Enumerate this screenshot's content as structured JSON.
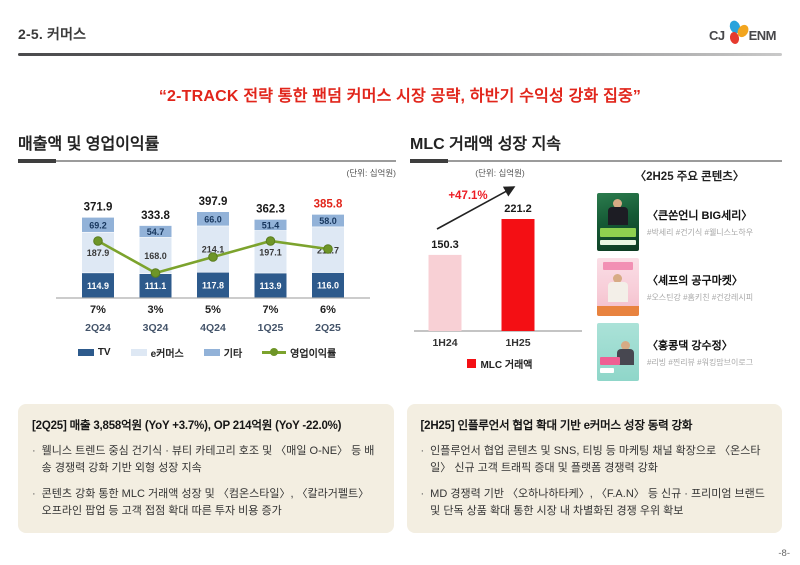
{
  "colors": {
    "accent_red": "#e1251b",
    "box_bg": "#f3eee1"
  },
  "header": {
    "slide_label": "2-5. 커머스",
    "logo_cj": "CJ",
    "logo_enm": "ENM"
  },
  "headline": "“2-TRACK 전략 통한 팬덤 커머스 시장 공략, 하반기 수익성 강화 집중”",
  "left_section": {
    "title": "매출액 및 영업이익률",
    "unit": "(단위: 십억원)"
  },
  "right_section": {
    "title": "MLC 거래액 성장 지속",
    "unit": "(단위: 십억원)",
    "contents_header": "〈2H25 주요 콘텐츠〉",
    "contents": [
      {
        "title": "〈큰쏜언니 BIG세리〉",
        "hashtags": "#박세리 #건기식 #웰니스노하우"
      },
      {
        "title": "〈셰프의 공구마켓〉",
        "hashtags": "#오스틴강 #홈키친 #건강레시피"
      },
      {
        "title": "〈홍콩댁 강수정〉",
        "hashtags": "#리빙 #찐리뷰 #워킹맘브이로그"
      }
    ]
  },
  "chart_data": [
    {
      "type": "bar",
      "subtype": "stacked-bars-with-line",
      "title": "매출액 및 영업이익률",
      "unit": "십억원",
      "categories": [
        "2Q24",
        "3Q24",
        "4Q24",
        "1Q25",
        "2Q25"
      ],
      "series": [
        {
          "name": "TV",
          "color": "#2d5a8c",
          "label_color": "#ffffff",
          "values": [
            114.9,
            111.1,
            117.8,
            113.9,
            116.0
          ]
        },
        {
          "name": "e커머스",
          "color": "#dee8f4",
          "label_color": "#3a3a3a",
          "values": [
            187.9,
            168.0,
            214.1,
            197.1,
            211.7
          ]
        },
        {
          "name": "기타",
          "color": "#92b2d8",
          "label_color": "#17365d",
          "values": [
            69.2,
            54.7,
            66.0,
            51.4,
            58.0
          ]
        }
      ],
      "totals": [
        371.9,
        333.8,
        397.9,
        362.3,
        385.8
      ],
      "highlight_index": 4,
      "percent_labels": [
        "7%",
        "3%",
        "5%",
        "7%",
        "6%"
      ],
      "line_series": {
        "name": "영업이익률",
        "percent": [
          7,
          3,
          5,
          7,
          6
        ],
        "color": "#7ca32d",
        "marker_color": "#6e9527",
        "marker_stroke": "#5a7d1e"
      },
      "legend": [
        "TV",
        "e커머스",
        "기타",
        "영업이익률"
      ],
      "grid": false
    },
    {
      "type": "bar",
      "title": "MLC 거래액 성장 지속",
      "unit": "십억원",
      "categories": [
        "1H24",
        "1H25"
      ],
      "values": [
        150.3,
        221.2
      ],
      "bar_colors": [
        "#f8d0d5",
        "#f40f14"
      ],
      "growth_label": "+47.1%",
      "growth_color": "#ed1c24",
      "legend": "MLC 거래액",
      "legend_color": "#f40f14",
      "grid": false
    }
  ],
  "boxes": [
    {
      "title": "[2Q25] 매출 3,858억원 (YoY +3.7%), OP 214억원 (YoY -22.0%)",
      "bullets": [
        "웰니스 트렌드 중심 건기식 · 뷰티 카테고리 호조 및 〈매일 O-NE〉 등 배송 경쟁력 강화 기반 외형 성장 지속",
        "콘텐츠 강화 통한 MLC 거래액 성장 및 〈컴온스타일〉, 〈칼라거펠트〉 오프라인 팝업 등 고객 접점 확대 따른 투자 비용 증가"
      ]
    },
    {
      "title": "[2H25] 인플루언서 협업 확대 기반 e커머스 성장 동력 강화",
      "bullets": [
        "인플루언서 협업 콘텐츠 및 SNS, 티빙 등 마케팅 채널 확장으로 〈온스타일〉 신규 고객 트래픽 증대 및 플랫폼 경쟁력 강화",
        "MD 경쟁력 기반 〈오하나하타케〉, 〈F.A.N〉 등 신규 · 프리미엄 브랜드 및 단독 상품 확대 통한 시장 내 차별화된 경쟁 우위 확보"
      ]
    }
  ],
  "footer": {
    "page": "-8-"
  }
}
